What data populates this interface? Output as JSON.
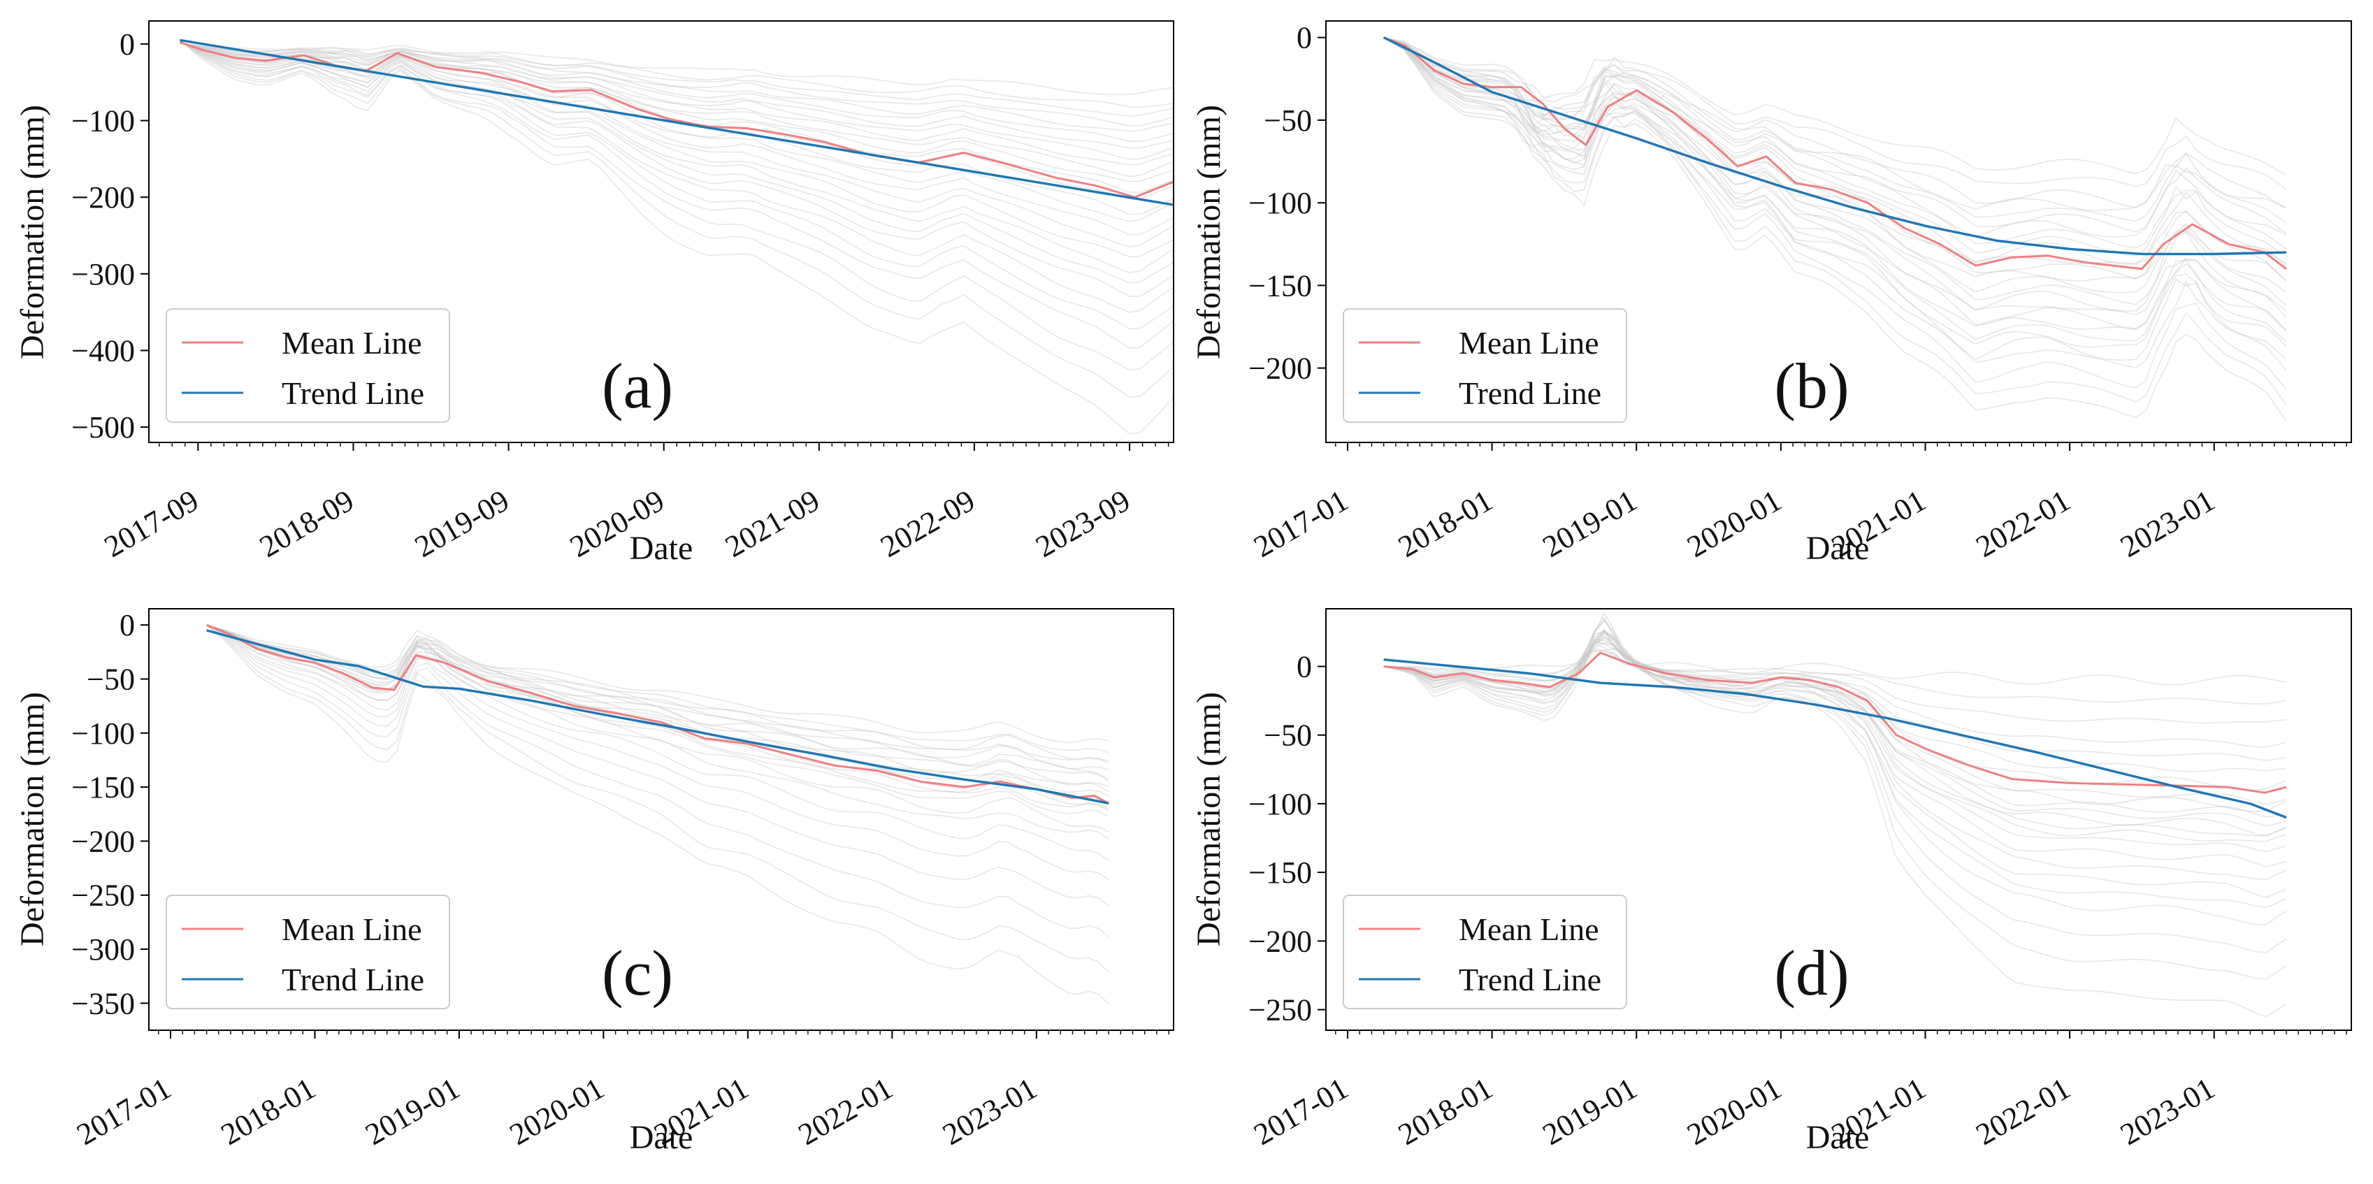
{
  "colors": {
    "mean": "#f08080",
    "trend": "#1f77b4",
    "background_lines": "#c8c8c8",
    "axes": "#000000"
  },
  "chart_data": [
    {
      "type": "line",
      "panel_label": "(a)",
      "xlabel": "Date",
      "ylabel": "Deformation (mm)",
      "x_ticks": [
        "2017-09",
        "2018-09",
        "2019-09",
        "2020-09",
        "2021-09",
        "2022-09",
        "2023-09"
      ],
      "x_range": [
        2017.35,
        2023.95
      ],
      "ylim": [
        -520,
        30
      ],
      "y_ticks": [
        0,
        -100,
        -200,
        -300,
        -400,
        -500
      ],
      "y_tick_labels": [
        "0",
        "−100",
        "−200",
        "−300",
        "−400",
        "−500"
      ],
      "legend": [
        "Mean Line",
        "Trend Line"
      ],
      "background_endpoints": [
        -60,
        -75,
        -85,
        -95,
        -105,
        -115,
        -125,
        -135,
        -145,
        -155,
        -165,
        -175,
        -185,
        -200,
        -210,
        -225,
        -240,
        -255,
        -270,
        -285,
        -300,
        -320,
        -340,
        -360,
        -390,
        -420,
        -460
      ],
      "background_seasonal": [
        [
          2018.6,
          6
        ],
        [
          2019.6,
          4
        ],
        [
          2021.2,
          5
        ],
        [
          2022.5,
          4
        ]
      ],
      "series": [
        {
          "name": "Mean Line",
          "x": [
            2017.55,
            2017.7,
            2017.9,
            2018.1,
            2018.35,
            2018.55,
            2018.75,
            2018.95,
            2019.2,
            2019.5,
            2019.75,
            2019.95,
            2020.2,
            2020.5,
            2020.7,
            2020.95,
            2021.2,
            2021.45,
            2021.7,
            2022.0,
            2022.3,
            2022.6,
            2022.9,
            2023.2,
            2023.45,
            2023.7,
            2023.95
          ],
          "y": [
            2,
            -8,
            -18,
            -22,
            -15,
            -28,
            -35,
            -12,
            -30,
            -38,
            -50,
            -62,
            -60,
            -85,
            -98,
            -108,
            -110,
            -118,
            -128,
            -145,
            -155,
            -142,
            -158,
            -175,
            -185,
            -200,
            -180
          ]
        },
        {
          "name": "Trend Line",
          "x": [
            2017.55,
            2023.95
          ],
          "y": [
            5,
            -210
          ]
        }
      ]
    },
    {
      "type": "line",
      "panel_label": "(b)",
      "xlabel": "Date",
      "ylabel": "Deformation (mm)",
      "x_ticks": [
        "2017-01",
        "2018-01",
        "2019-01",
        "2020-01",
        "2021-01",
        "2022-01",
        "2023-01"
      ],
      "x_range": [
        2016.85,
        2023.95
      ],
      "ylim": [
        -245,
        10
      ],
      "y_ticks": [
        0,
        -50,
        -100,
        -150,
        -200
      ],
      "y_tick_labels": [
        "0",
        "−50",
        "−100",
        "−150",
        "−200"
      ],
      "legend": [
        "Mean Line",
        "Trend Line"
      ],
      "background_endpoints": [
        -80,
        -90,
        -100,
        -105,
        -110,
        -115,
        -120,
        -125,
        -130,
        -135,
        -140,
        -145,
        -150,
        -155,
        -160,
        -165,
        -170,
        -175,
        -180,
        -185,
        -190,
        -195,
        -200,
        -210,
        -220,
        -230
      ],
      "background_seasonal": [
        [
          2018.3,
          -15
        ],
        [
          2018.75,
          18
        ],
        [
          2022.75,
          15
        ]
      ],
      "series": [
        {
          "name": "Mean Line",
          "x": [
            2017.25,
            2017.4,
            2017.6,
            2017.8,
            2018.0,
            2018.2,
            2018.35,
            2018.5,
            2018.65,
            2018.8,
            2019.0,
            2019.25,
            2019.5,
            2019.7,
            2019.9,
            2020.1,
            2020.35,
            2020.6,
            2020.85,
            2021.1,
            2021.35,
            2021.6,
            2021.85,
            2022.1,
            2022.3,
            2022.5,
            2022.65,
            2022.85,
            2023.1,
            2023.35,
            2023.5
          ],
          "y": [
            0,
            -5,
            -20,
            -28,
            -30,
            -30,
            -40,
            -55,
            -65,
            -42,
            -32,
            -45,
            -62,
            -78,
            -72,
            -88,
            -92,
            -100,
            -115,
            -125,
            -138,
            -133,
            -132,
            -136,
            -138,
            -140,
            -125,
            -113,
            -125,
            -130,
            -140
          ]
        },
        {
          "name": "Trend Line",
          "x": [
            2017.25,
            2017.6,
            2018.0,
            2018.5,
            2019.0,
            2019.5,
            2020.0,
            2020.5,
            2021.0,
            2021.5,
            2022.0,
            2022.5,
            2023.0,
            2023.5
          ],
          "y": [
            0,
            -15,
            -33,
            -47,
            -61,
            -76,
            -90,
            -103,
            -114,
            -123,
            -128,
            -131,
            -131,
            -130
          ]
        }
      ]
    },
    {
      "type": "line",
      "panel_label": "(c)",
      "xlabel": "Date",
      "ylabel": "Deformation (mm)",
      "x_ticks": [
        "2017-01",
        "2018-01",
        "2019-01",
        "2020-01",
        "2021-01",
        "2022-01",
        "2023-01"
      ],
      "x_range": [
        2016.85,
        2023.95
      ],
      "ylim": [
        -375,
        15
      ],
      "y_ticks": [
        0,
        -50,
        -100,
        -150,
        -200,
        -250,
        -300,
        -350
      ],
      "y_tick_labels": [
        "0",
        "−50",
        "−100",
        "−150",
        "−200",
        "−250",
        "−300",
        "−350"
      ],
      "legend": [
        "Mean Line",
        "Trend Line"
      ],
      "background_endpoints": [
        -110,
        -120,
        -125,
        -130,
        -135,
        -140,
        -145,
        -150,
        -155,
        -160,
        -165,
        -170,
        -175,
        -180,
        -190,
        -200,
        -215,
        -235,
        -260,
        -290,
        -320,
        -350
      ],
      "background_seasonal": [
        [
          2018.75,
          10
        ],
        [
          2022.8,
          5
        ]
      ],
      "series": [
        {
          "name": "Mean Line",
          "x": [
            2017.25,
            2017.4,
            2017.6,
            2017.8,
            2018.0,
            2018.2,
            2018.4,
            2018.55,
            2018.7,
            2018.9,
            2019.2,
            2019.5,
            2019.8,
            2020.1,
            2020.4,
            2020.7,
            2021.0,
            2021.3,
            2021.6,
            2021.9,
            2022.2,
            2022.5,
            2022.75,
            2023.0,
            2023.25,
            2023.4,
            2023.5
          ],
          "y": [
            0,
            -8,
            -22,
            -30,
            -35,
            -45,
            -58,
            -60,
            -28,
            -35,
            -52,
            -63,
            -75,
            -82,
            -90,
            -105,
            -110,
            -120,
            -130,
            -135,
            -145,
            -150,
            -145,
            -152,
            -160,
            -158,
            -165
          ]
        },
        {
          "name": "Trend Line",
          "x": [
            2017.25,
            2018.0,
            2018.3,
            2018.75,
            2019.0,
            2019.5,
            2020.0,
            2020.5,
            2021.0,
            2021.5,
            2022.0,
            2022.5,
            2023.0,
            2023.5
          ],
          "y": [
            -5,
            -32,
            -38,
            -57,
            -59,
            -70,
            -83,
            -95,
            -108,
            -120,
            -133,
            -143,
            -152,
            -165
          ]
        }
      ]
    },
    {
      "type": "line",
      "panel_label": "(d)",
      "xlabel": "Date",
      "ylabel": "Deformation (mm)",
      "x_ticks": [
        "2017-01",
        "2018-01",
        "2019-01",
        "2020-01",
        "2021-01",
        "2022-01",
        "2023-01"
      ],
      "x_range": [
        2016.85,
        2023.95
      ],
      "ylim": [
        -265,
        42
      ],
      "y_ticks": [
        0,
        -50,
        -100,
        -150,
        -200,
        -250
      ],
      "y_tick_labels": [
        "0",
        "−50",
        "−100",
        "−150",
        "−200",
        "−250"
      ],
      "legend": [
        "Mean Line",
        "Trend Line"
      ],
      "background_endpoints": [
        -10,
        -25,
        -40,
        -55,
        -65,
        -75,
        -85,
        -95,
        -100,
        -105,
        -110,
        -115,
        -120,
        -125,
        -130,
        -140,
        -150,
        -160,
        -170,
        -180,
        -200,
        -220,
        -245
      ],
      "background_seasonal": [
        [
          2018.75,
          12
        ],
        [
          2020.5,
          0
        ]
      ],
      "series": [
        {
          "name": "Mean Line",
          "x": [
            2017.25,
            2017.45,
            2017.6,
            2017.8,
            2018.0,
            2018.2,
            2018.4,
            2018.6,
            2018.75,
            2018.95,
            2019.2,
            2019.5,
            2019.8,
            2020.0,
            2020.2,
            2020.4,
            2020.6,
            2020.8,
            2021.0,
            2021.3,
            2021.6,
            2022.0,
            2022.4,
            2022.8,
            2023.1,
            2023.35,
            2023.5
          ],
          "y": [
            0,
            -2,
            -8,
            -5,
            -10,
            -12,
            -15,
            -5,
            10,
            2,
            -5,
            -10,
            -12,
            -8,
            -10,
            -15,
            -25,
            -50,
            -60,
            -72,
            -82,
            -85,
            -86,
            -87,
            -88,
            -92,
            -88
          ]
        },
        {
          "name": "Trend Line",
          "x": [
            2017.25,
            2017.75,
            2018.25,
            2018.75,
            2019.25,
            2019.75,
            2020.25,
            2020.75,
            2021.25,
            2021.75,
            2022.25,
            2022.75,
            2023.25,
            2023.5
          ],
          "y": [
            5,
            0,
            -5,
            -12,
            -15,
            -20,
            -28,
            -38,
            -50,
            -62,
            -75,
            -88,
            -100,
            -110
          ]
        }
      ]
    }
  ]
}
